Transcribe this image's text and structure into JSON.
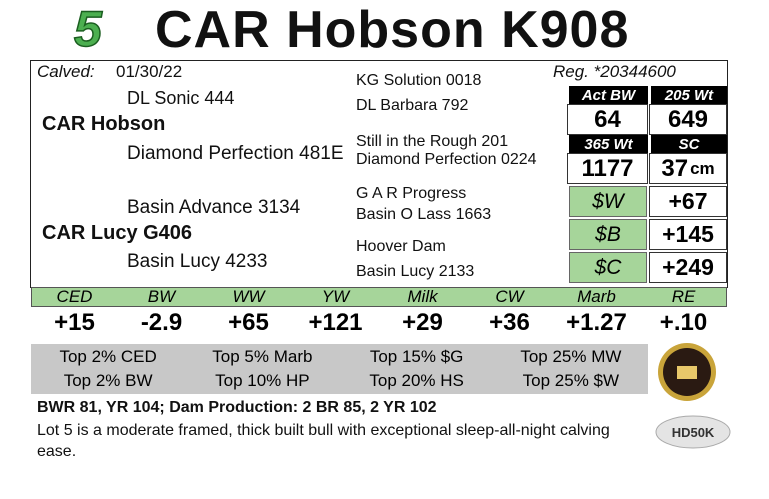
{
  "header": {
    "lot": "5",
    "name": "CAR Hobson K908"
  },
  "info": {
    "calved_label": "Calved:",
    "calved": "01/30/22",
    "registration": "Reg. *20344600"
  },
  "pedigree": {
    "sire": "CAR Hobson",
    "sire_sire": "DL Sonic 444",
    "sire_dam": "Diamond Perfection 481E",
    "dam": "CAR Lucy G406",
    "dam_sire": "Basin Advance 3134",
    "dam_dam": "Basin Lucy 4233",
    "third_generation": [
      "KG Solution 0018",
      "DL Barbara 792",
      "Still in the Rough 201",
      "Diamond Perfection 0224",
      "G A R Progress",
      "Basin O Lass 1663",
      "Hoover Dam",
      "Basin Lucy 2133"
    ]
  },
  "measures": [
    {
      "label": "Act BW",
      "value": "64"
    },
    {
      "label": "205 Wt",
      "value": "649"
    },
    {
      "label": "365 Wt",
      "value": "1177"
    },
    {
      "label": "SC",
      "value": "37",
      "unit": "cm"
    }
  ],
  "indexes": [
    {
      "label": "$W",
      "value": "+67"
    },
    {
      "label": "$B",
      "value": "+145"
    },
    {
      "label": "$C",
      "value": "+249"
    }
  ],
  "epds": {
    "labels": [
      "CED",
      "BW",
      "WW",
      "YW",
      "Milk",
      "CW",
      "Marb",
      "RE"
    ],
    "values": [
      "+15",
      "-2.9",
      "+65",
      "+121",
      "+29",
      "+36",
      "+1.27",
      "+.10"
    ]
  },
  "rankings": [
    [
      "Top 2% CED",
      "Top 5% Marb",
      "Top 15% $G",
      "Top 25% MW"
    ],
    [
      "Top 2% BW",
      "Top 10% HP",
      "Top 20% HS",
      "Top 25% $W"
    ]
  ],
  "notes": {
    "performance": "BWR 81, YR 104;  Dam Production: 2 BR 85, 2 YR 102",
    "description": "Lot 5 is a moderate framed, thick built bull with exceptional sleep-all-night calving ease."
  },
  "logos": {
    "genomic": "HD50K"
  }
}
